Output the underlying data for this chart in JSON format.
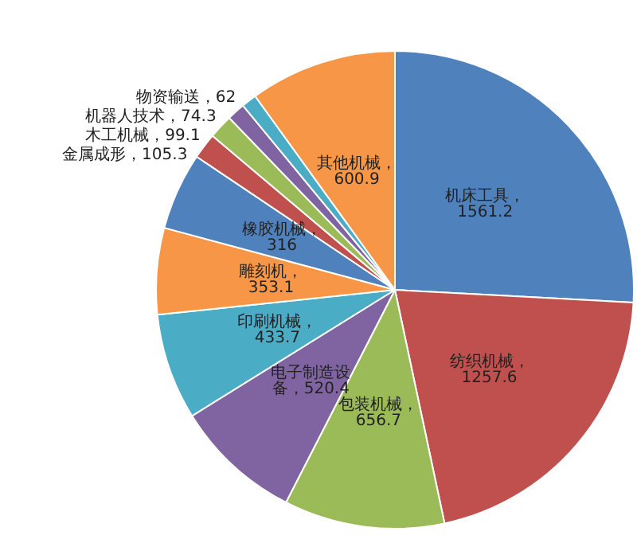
{
  "chart_data": {
    "type": "pie",
    "categories": [
      "机床工具",
      "纺织机械",
      "包装机械",
      "电子制造设备",
      "印刷机械",
      "雕刻机",
      "橡胶机械",
      "金属成形",
      "木工机械",
      "机器人技术",
      "物资输送",
      "其他机械"
    ],
    "values": [
      1561.2,
      1257.6,
      656.7,
      520.4,
      433.7,
      353.1,
      316,
      105.3,
      99.1,
      74.3,
      62,
      600.9
    ],
    "colors": [
      "#4f81bd",
      "#c0504d",
      "#9bbb59",
      "#8064a2",
      "#4bacc6",
      "#f79646",
      "#4f81bd",
      "#c0504d",
      "#9bbb59",
      "#8064a2",
      "#4bacc6",
      "#f79646"
    ],
    "value_labels": [
      "，1561.2",
      "，1257.6",
      "，656.7",
      "，520.4",
      "，433.7",
      "，353.1",
      "，316",
      "，105.3",
      "，99.1",
      "，74.3",
      "，62",
      "，600.9"
    ],
    "legend": false
  }
}
